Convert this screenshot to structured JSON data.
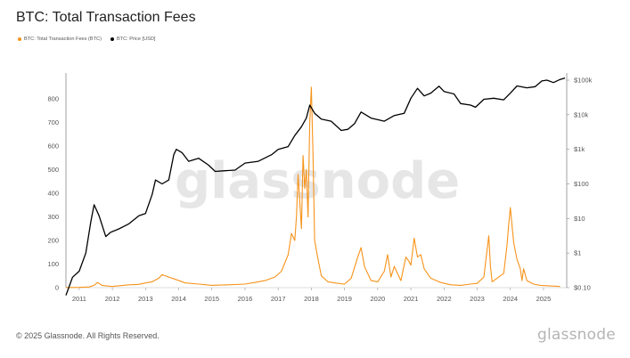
{
  "header": {
    "title": "BTC: Total Transaction Fees"
  },
  "legend": [
    {
      "label": "BTC: Total Transaction Fees (BTC)",
      "color": "#f7931a"
    },
    {
      "label": "BTC: Price [USD]",
      "color": "#000000"
    }
  ],
  "footer": {
    "copyright": "© 2025 Glassnode. All Rights Reserved.",
    "logo": "glassnode"
  },
  "watermark": "glassnode",
  "chart_data": {
    "type": "line",
    "title": "BTC: Total Transaction Fees",
    "xlabel": "",
    "ylabel": "",
    "xlim": [
      2010.6,
      2025.7
    ],
    "x_ticks": [
      "2011",
      "2012",
      "2013",
      "2014",
      "2015",
      "2016",
      "2017",
      "2018",
      "2019",
      "2020",
      "2021",
      "2022",
      "2023",
      "2024",
      "2025"
    ],
    "y_left": {
      "ylim": [
        0,
        880
      ],
      "ticks": [
        "0",
        "100",
        "200",
        "300",
        "400",
        "500",
        "600",
        "700",
        "800"
      ]
    },
    "y_right": {
      "scale": "log",
      "ylim": [
        0.1,
        100000
      ],
      "ticks": [
        "$0.10",
        "$1",
        "$10",
        "$100",
        "$1k",
        "$10k",
        "$100k"
      ]
    },
    "grid": false,
    "legend_position": "top-left",
    "series": [
      {
        "name": "BTC: Total Transaction Fees (BTC)",
        "axis": "left",
        "color": "#f7931a",
        "x": [
          2010.6,
          2011.0,
          2011.3,
          2011.45,
          2011.55,
          2011.7,
          2012.0,
          2012.2,
          2012.5,
          2012.8,
          2013.0,
          2013.2,
          2013.4,
          2013.5,
          2013.7,
          2013.9,
          2014.2,
          2014.6,
          2015.0,
          2015.5,
          2016.0,
          2016.3,
          2016.6,
          2016.9,
          2017.1,
          2017.3,
          2017.4,
          2017.5,
          2017.55,
          2017.6,
          2017.7,
          2017.75,
          2017.8,
          2017.85,
          2017.9,
          2017.95,
          2018.0,
          2018.05,
          2018.1,
          2018.2,
          2018.3,
          2018.5,
          2018.8,
          2019.0,
          2019.2,
          2019.4,
          2019.5,
          2019.6,
          2019.8,
          2020.0,
          2020.2,
          2020.3,
          2020.4,
          2020.5,
          2020.7,
          2020.85,
          2020.95,
          2021.0,
          2021.1,
          2021.2,
          2021.3,
          2021.4,
          2021.6,
          2021.9,
          2022.2,
          2022.5,
          2022.8,
          2023.0,
          2023.2,
          2023.35,
          2023.4,
          2023.45,
          2023.6,
          2023.8,
          2023.9,
          2023.95,
          2024.0,
          2024.1,
          2024.2,
          2024.3,
          2024.35,
          2024.4,
          2024.5,
          2024.7,
          2024.9,
          2025.2,
          2025.5
        ],
        "values": [
          0.5,
          1,
          3,
          10,
          22,
          9,
          5,
          8,
          12,
          14,
          20,
          25,
          40,
          55,
          45,
          35,
          20,
          15,
          10,
          12,
          15,
          22,
          30,
          45,
          70,
          140,
          230,
          200,
          300,
          480,
          250,
          560,
          420,
          500,
          300,
          700,
          850,
          560,
          200,
          120,
          50,
          25,
          18,
          15,
          40,
          130,
          170,
          90,
          30,
          25,
          70,
          140,
          45,
          90,
          30,
          130,
          110,
          95,
          210,
          130,
          140,
          80,
          40,
          22,
          12,
          10,
          15,
          18,
          45,
          220,
          90,
          25,
          40,
          60,
          180,
          270,
          340,
          190,
          120,
          80,
          30,
          80,
          30,
          15,
          10,
          7,
          5
        ]
      },
      {
        "name": "BTC: Price [USD]",
        "axis": "right",
        "color": "#000000",
        "x": [
          2010.6,
          2010.8,
          2011.0,
          2011.2,
          2011.35,
          2011.45,
          2011.6,
          2011.8,
          2011.95,
          2012.2,
          2012.5,
          2012.8,
          2013.0,
          2013.2,
          2013.3,
          2013.5,
          2013.7,
          2013.85,
          2013.93,
          2014.1,
          2014.3,
          2014.6,
          2014.9,
          2015.1,
          2015.4,
          2015.7,
          2016.0,
          2016.4,
          2016.8,
          2017.0,
          2017.3,
          2017.5,
          2017.7,
          2017.85,
          2017.95,
          2018.1,
          2018.3,
          2018.6,
          2018.9,
          2019.1,
          2019.3,
          2019.5,
          2019.8,
          2020.0,
          2020.2,
          2020.5,
          2020.8,
          2021.0,
          2021.2,
          2021.4,
          2021.6,
          2021.85,
          2022.0,
          2022.3,
          2022.5,
          2022.8,
          2022.95,
          2023.2,
          2023.5,
          2023.8,
          2024.0,
          2024.2,
          2024.5,
          2024.75,
          2024.95,
          2025.1,
          2025.3,
          2025.5,
          2025.65
        ],
        "values": [
          0.06,
          0.2,
          0.3,
          1,
          8,
          25,
          12,
          3,
          4,
          5,
          7,
          12,
          14,
          50,
          130,
          100,
          130,
          700,
          1000,
          800,
          450,
          550,
          350,
          230,
          240,
          250,
          400,
          450,
          700,
          1000,
          1200,
          2500,
          4500,
          8000,
          19000,
          11000,
          7500,
          6500,
          3500,
          3800,
          5500,
          12000,
          8000,
          7200,
          6500,
          9500,
          11000,
          30000,
          58000,
          35000,
          42000,
          67000,
          47000,
          40000,
          21000,
          19000,
          16500,
          28000,
          30000,
          27000,
          42000,
          68000,
          60000,
          65000,
          95000,
          100000,
          85000,
          105000,
          115000
        ]
      }
    ]
  }
}
